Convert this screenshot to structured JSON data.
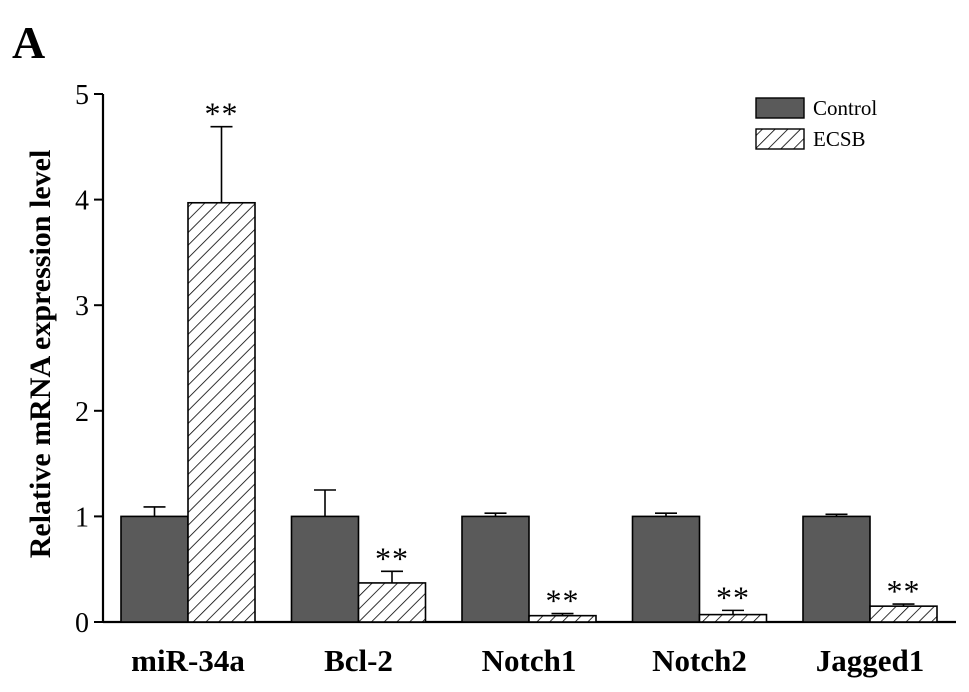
{
  "panel_label": "A",
  "chart_data": {
    "type": "bar",
    "title": "",
    "ylabel": "Relative mRNA expression level",
    "xlabel": "",
    "ylim": [
      0,
      5
    ],
    "yticks": [
      0,
      1,
      2,
      3,
      4,
      5
    ],
    "categories": [
      "miR-34a",
      "Bcl-2",
      "Notch1",
      "Notch2",
      "Jagged1"
    ],
    "series": [
      {
        "name": "Control",
        "fill": "solid",
        "color": "#5a5a5a",
        "values": [
          1.0,
          1.0,
          1.0,
          1.0,
          1.0
        ],
        "errors": [
          0.09,
          0.25,
          0.03,
          0.03,
          0.02
        ],
        "significance": [
          "",
          "",
          "",
          "",
          ""
        ]
      },
      {
        "name": "ECSB",
        "fill": "hatched",
        "color": "#ffffff",
        "values": [
          3.97,
          0.37,
          0.06,
          0.07,
          0.15
        ],
        "errors": [
          0.72,
          0.11,
          0.02,
          0.04,
          0.02
        ],
        "significance": [
          "**",
          "**",
          "**",
          "**",
          "**"
        ]
      }
    ],
    "legend": {
      "position": "top-right"
    },
    "grid": false
  }
}
